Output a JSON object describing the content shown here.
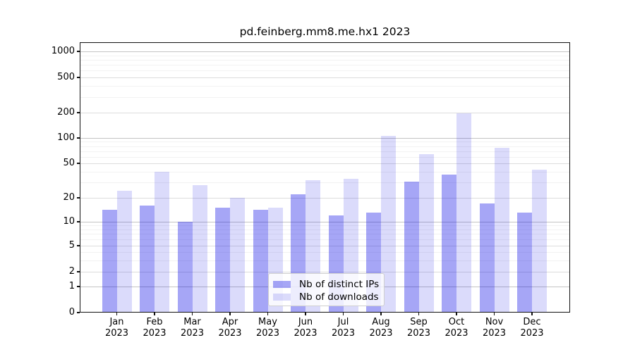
{
  "title": "pd.feinberg.mm8.me.hx1 2023",
  "legend": {
    "items": [
      {
        "label": "Nb of distinct IPs"
      },
      {
        "label": "Nb of downloads"
      }
    ]
  },
  "colors": {
    "ips_fill": "rgba(0,0,230,0.35)",
    "downloads_fill": "rgba(0,0,230,0.14)",
    "grid_major": "#c4c4c4",
    "grid_mid": "#dcdcdc",
    "grid_faint": "#f2f2f2",
    "axis": "#111111"
  },
  "chart_data": {
    "type": "bar",
    "title": "pd.feinberg.mm8.me.hx1 2023",
    "categories": [
      "Jan 2023",
      "Feb 2023",
      "Mar 2023",
      "Apr 2023",
      "May 2023",
      "Jun 2023",
      "Jul 2023",
      "Aug 2023",
      "Sep 2023",
      "Oct 2023",
      "Nov 2023",
      "Dec 2023"
    ],
    "x_tick_line1": [
      "Jan",
      "Feb",
      "Mar",
      "Apr",
      "May",
      "Jun",
      "Jul",
      "Aug",
      "Sep",
      "Oct",
      "Nov",
      "Dec"
    ],
    "x_tick_line2": "2023",
    "series": [
      {
        "name": "Nb of distinct IPs",
        "values": [
          14,
          16,
          10,
          15,
          14,
          22,
          12,
          13,
          31,
          37,
          17,
          13
        ]
      },
      {
        "name": "Nb of downloads",
        "values": [
          24,
          40,
          28,
          20,
          15,
          32,
          33,
          105,
          64,
          197,
          76,
          42
        ]
      }
    ],
    "yscale": "symlog",
    "ytick_values": [
      1000,
      500,
      200,
      100,
      50,
      20,
      10,
      5,
      2,
      1,
      0
    ],
    "ytick_labels": [
      "1000",
      "500",
      "200",
      "100",
      "50",
      "20",
      "10",
      "5",
      "2",
      "1",
      "0"
    ],
    "major_grid_values": [
      1,
      10,
      100,
      1000
    ],
    "mid_grid_values": [
      2,
      5,
      20,
      50,
      200,
      500
    ],
    "faint_grid_values": [
      3,
      4,
      6,
      7,
      8,
      9,
      30,
      40,
      60,
      70,
      80,
      90,
      300,
      400,
      600,
      700,
      800,
      900
    ],
    "ylim": [
      0,
      1400
    ],
    "grid": true,
    "legend_position": "lower center"
  }
}
